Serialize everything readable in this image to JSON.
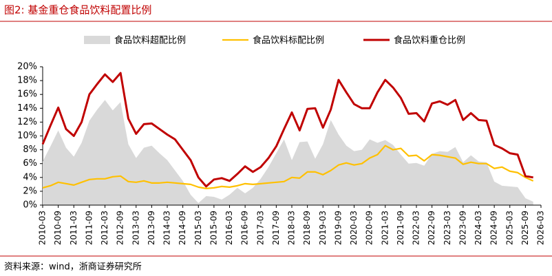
{
  "header": {
    "title": "图2:   基金重仓食品饮料配置比例"
  },
  "footer": {
    "source": "资料来源：wind，浙商证券研究所"
  },
  "chart_data": {
    "type": "line",
    "x": [
      "2010-03",
      "2010-06",
      "2010-09",
      "2010-12",
      "2011-03",
      "2011-06",
      "2011-09",
      "2011-12",
      "2012-03",
      "2012-06",
      "2012-09",
      "2012-12",
      "2013-03",
      "2013-06",
      "2013-09",
      "2013-12",
      "2014-03",
      "2014-06",
      "2014-09",
      "2014-12",
      "2015-03",
      "2015-06",
      "2015-09",
      "2015-12",
      "2016-03",
      "2016-06",
      "2016-09",
      "2016-12",
      "2017-03",
      "2017-06",
      "2017-09",
      "2017-12",
      "2018-03",
      "2018-06",
      "2018-09",
      "2018-12",
      "2019-03",
      "2019-06",
      "2019-09",
      "2019-12",
      "2020-03",
      "2020-06",
      "2020-09",
      "2020-12",
      "2021-03",
      "2021-06",
      "2021-09",
      "2021-12",
      "2022-03",
      "2022-06",
      "2022-09",
      "2022-12",
      "2023-03",
      "2023-06",
      "2023-09",
      "2023-12",
      "2024-03",
      "2024-06",
      "2024-09",
      "2024-12",
      "2025-03",
      "2025-06",
      "2025-09",
      "2025-12"
    ],
    "xticks": [
      "2010-03",
      "2010-09",
      "2011-03",
      "2011-09",
      "2012-03",
      "2012-09",
      "2013-03",
      "2013-09",
      "2014-03",
      "2014-09",
      "2015-03",
      "2015-09",
      "2016-03",
      "2016-09",
      "2017-03",
      "2017-09",
      "2018-03",
      "2018-09",
      "2019-03",
      "2019-09",
      "2020-03",
      "2020-09",
      "2021-03",
      "2021-09",
      "2022-03",
      "2022-09",
      "2023-03",
      "2023-09",
      "2024-03",
      "2024-09",
      "2025-03",
      "2025-09",
      "2026-03"
    ],
    "xlim": [
      "2010-03",
      "2026-03"
    ],
    "ylim": [
      0,
      20
    ],
    "yticks": [
      {
        "value": 0,
        "label": "0%"
      },
      {
        "value": 2,
        "label": "2%"
      },
      {
        "value": 4,
        "label": "4%"
      },
      {
        "value": 6,
        "label": "6%"
      },
      {
        "value": 8,
        "label": "8%"
      },
      {
        "value": 10,
        "label": "10%"
      },
      {
        "value": 12,
        "label": "12%"
      },
      {
        "value": 14,
        "label": "14%"
      },
      {
        "value": 16,
        "label": "16%"
      },
      {
        "value": 18,
        "label": "18%"
      },
      {
        "value": 20,
        "label": "20%"
      }
    ],
    "series": [
      {
        "name": "食品饮料超配比例",
        "kind": "area",
        "color": "#d9d9d9",
        "values": [
          6.3,
          8.5,
          10.8,
          8.3,
          7.0,
          9.0,
          12.2,
          13.8,
          15.2,
          13.7,
          14.9,
          8.8,
          6.8,
          8.3,
          8.6,
          7.5,
          6.5,
          5.0,
          3.5,
          1.5,
          0.3,
          1.3,
          1.2,
          0.8,
          1.5,
          2.5,
          1.7,
          2.5,
          3.8,
          5.5,
          7.5,
          9.5,
          6.5,
          9.1,
          9.2,
          6.7,
          8.8,
          12.3,
          10.2,
          8.6,
          7.8,
          8.0,
          9.5,
          9.0,
          9.4,
          8.7,
          7.3,
          6.0,
          6.1,
          5.7,
          7.4,
          7.8,
          7.7,
          8.4,
          6.2,
          7.2,
          6.3,
          6.2,
          3.4,
          2.8,
          2.7,
          2.6,
          1.0,
          0.5
        ]
      },
      {
        "name": "食品饮料标配比例",
        "kind": "line",
        "color": "#ffc000",
        "values": [
          2.5,
          2.8,
          3.3,
          3.1,
          2.9,
          3.3,
          3.7,
          3.8,
          3.8,
          4.1,
          4.2,
          3.4,
          3.3,
          3.5,
          3.2,
          3.2,
          3.3,
          3.2,
          3.1,
          3.0,
          2.6,
          2.4,
          2.5,
          2.7,
          2.6,
          2.8,
          3.1,
          3.0,
          3.1,
          3.2,
          3.3,
          3.4,
          4.0,
          3.9,
          4.8,
          4.8,
          4.4,
          5.0,
          5.8,
          6.1,
          5.8,
          6.0,
          6.8,
          7.3,
          8.6,
          8.0,
          8.2,
          7.1,
          7.2,
          6.4,
          7.3,
          7.2,
          7.0,
          6.8,
          5.9,
          6.2,
          6.0,
          6.0,
          5.3,
          5.5,
          4.9,
          4.7,
          4.0,
          3.5
        ]
      },
      {
        "name": "食品饮料重仓比例",
        "kind": "line",
        "color": "#c00000",
        "values": [
          8.8,
          11.5,
          14.1,
          11.0,
          10.0,
          12.0,
          16.0,
          17.5,
          18.9,
          17.8,
          19.1,
          12.5,
          10.3,
          11.7,
          11.8,
          11.0,
          10.2,
          9.5,
          8.0,
          6.5,
          4.0,
          2.7,
          3.7,
          3.9,
          3.5,
          4.5,
          5.6,
          4.8,
          5.5,
          6.8,
          8.5,
          11.0,
          13.4,
          10.8,
          13.9,
          14.0,
          11.2,
          13.8,
          18.1,
          16.3,
          14.6,
          14.0,
          14.0,
          16.3,
          18.1,
          17.0,
          15.5,
          13.2,
          13.3,
          12.1,
          14.7,
          15.0,
          14.5,
          15.2,
          12.3,
          13.3,
          12.3,
          12.2,
          8.7,
          8.2,
          7.5,
          7.3,
          4.2,
          4.0
        ]
      }
    ]
  }
}
